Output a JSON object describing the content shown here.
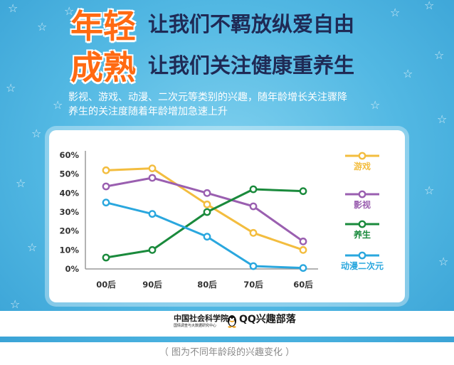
{
  "header": {
    "word1": "年轻",
    "slogan1": "让我们不羁放纵爱自由",
    "word2": "成熟",
    "slogan2": "让我们关注健康重养生"
  },
  "description": {
    "line1": "影视、游戏、动漫、二次元等类别的兴趣，随年龄增长关注骤降",
    "line2": "养生的关注度随着年龄增加急速上升"
  },
  "footer": {
    "cass_name": "中国社会科学院",
    "cass_sub": "国情调查与大数据研究中心",
    "qq_name": "QQ兴趣部落"
  },
  "caption": "（ 图为不同年龄段的兴趣变化 ）",
  "colors": {
    "orange": "#ff6a12",
    "navy": "#1f2a55",
    "sky": "#52b8e3"
  },
  "chart_data": {
    "type": "line",
    "categories": [
      "00后",
      "90后",
      "80后",
      "70后",
      "60后"
    ],
    "y_ticks": [
      "60%",
      "50%",
      "40%",
      "30%",
      "20%",
      "10%",
      "0%"
    ],
    "ylim": [
      0,
      60
    ],
    "grid": false,
    "legend_position": "right",
    "series": [
      {
        "name": "游戏",
        "color": "#f3bd3f",
        "values": [
          52,
          53,
          34,
          19,
          10
        ]
      },
      {
        "name": "影视",
        "color": "#9a5fb0",
        "values": [
          43.5,
          48,
          40,
          33,
          14.5
        ]
      },
      {
        "name": "养生",
        "color": "#1a8a3c",
        "values": [
          6,
          10,
          30,
          42,
          41
        ]
      },
      {
        "name": "动漫二次元",
        "color": "#2aa7de",
        "values": [
          35,
          29,
          17,
          1.5,
          0.5
        ]
      }
    ]
  }
}
